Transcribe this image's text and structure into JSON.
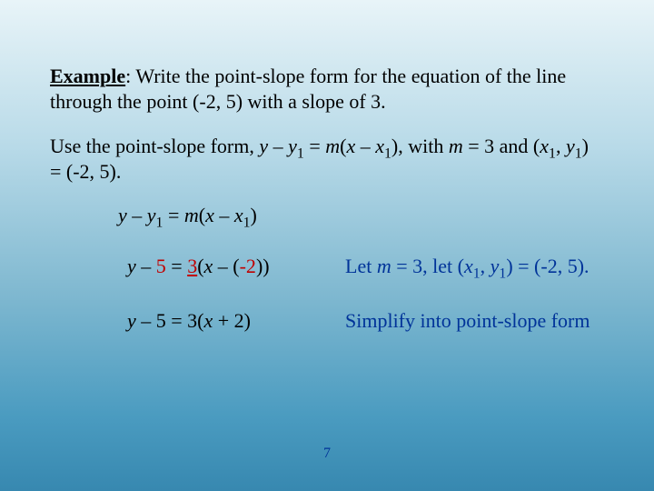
{
  "colors": {
    "text": "#000000",
    "red": "#c00000",
    "blue": "#003399",
    "bg_top": "#e8f4f8",
    "bg_bottom": "#3788b0"
  },
  "typography": {
    "font_family": "Times New Roman",
    "body_fontsize_pt": 22,
    "pagenum_fontsize_pt": 16
  },
  "para1": {
    "lead_bold": "Example",
    "rest": ": Write the point-slope form for the equation of the line through the point (-2, 5) with a slope of 3."
  },
  "para2": {
    "pre": "Use the point-slope form, ",
    "y": "y",
    "minus": " – ",
    "y1": "y",
    "eq": " = ",
    "m": "m",
    "open": "(",
    "x": "x",
    "x1": "x",
    "close": ")",
    "with": ", with ",
    "m2": "m",
    "eq3": " = 3 and (",
    "x1b": "x",
    "comma": ", ",
    "y1b": "y",
    "tail": ") = (-2, 5)."
  },
  "eq1": {
    "y": "y",
    "minus": " – ",
    "y1": "y",
    "eq": " = ",
    "m": "m",
    "open": "(",
    "x": "x",
    "x1": "x",
    "close": ")"
  },
  "step1": {
    "y": "y",
    "minus": " – ",
    "five": "5",
    "eq": " = ",
    "three": "3",
    "open": "(",
    "x": "x",
    "minus2": " – (",
    "neg2": "-2",
    "close": "))",
    "explain_pre": "Let ",
    "m": "m",
    "explain_mid": " = 3, let (",
    "x1": "x",
    "comma": ", ",
    "y1": "y",
    "explain_tail": ") = (-2, 5)."
  },
  "step2": {
    "y": "y",
    "minus": " – 5 = 3(",
    "x": "x",
    "tail": " + 2)",
    "explain": "Simplify into point-slope form"
  },
  "page_number": "7"
}
